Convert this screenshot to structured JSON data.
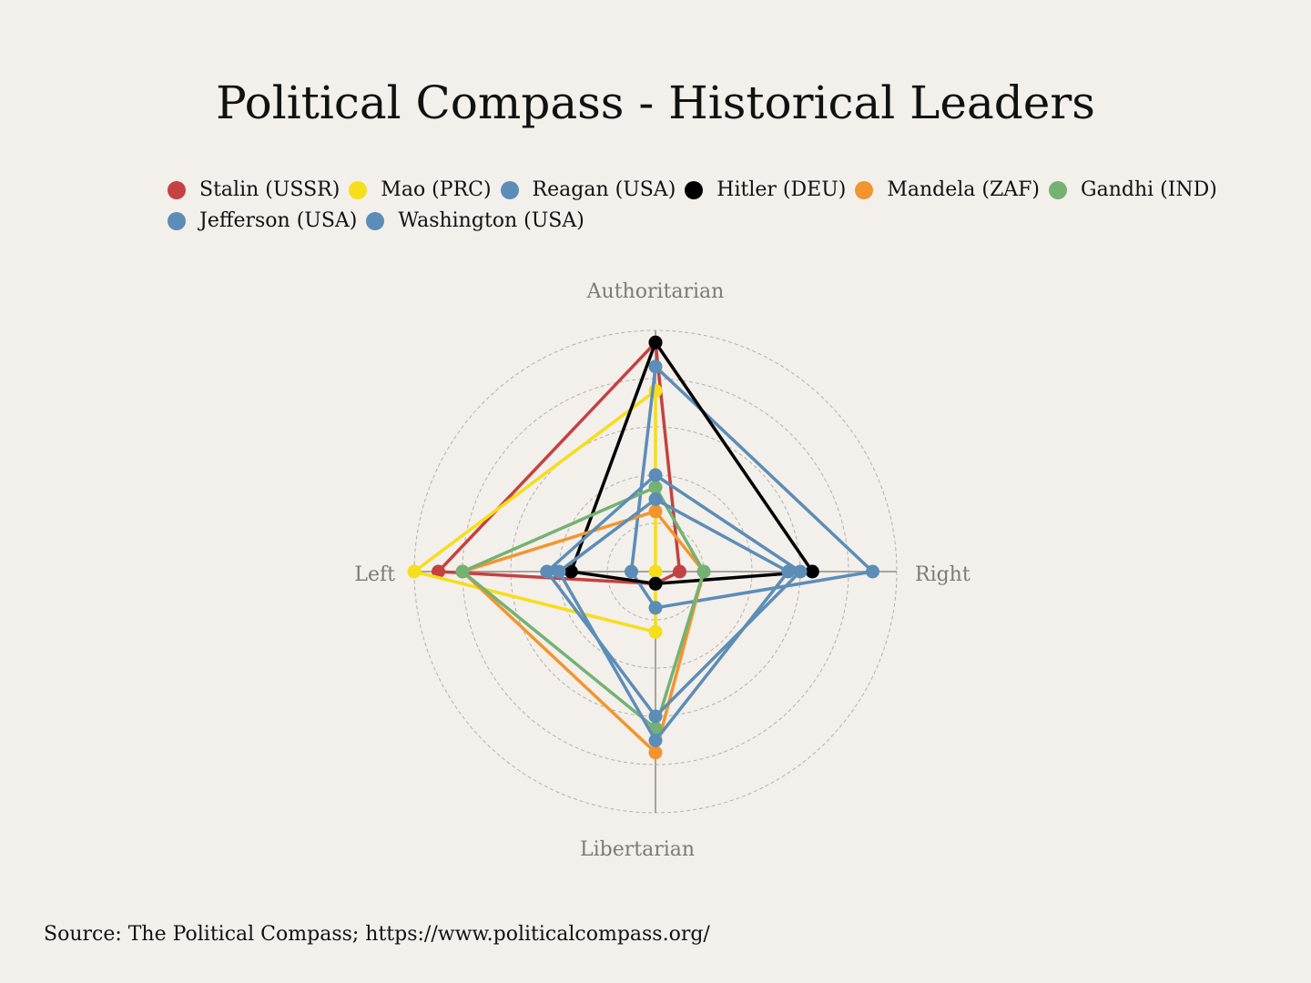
{
  "chart_data": {
    "type": "radar",
    "title": "Political Compass - Historical Leaders",
    "axes": [
      "Authoritarian",
      "Right",
      "Libertarian",
      "Left"
    ],
    "range": [
      0,
      10
    ],
    "grid": true,
    "legend_position": "top",
    "series": [
      {
        "name": "Stalin (USSR)",
        "color": "#c44241",
        "values": [
          9.5,
          1,
          0.5,
          9
        ]
      },
      {
        "name": "Mao (PRC)",
        "color": "#f5de1b",
        "values": [
          7.5,
          0,
          2.5,
          10
        ]
      },
      {
        "name": "Reagan (USA)",
        "color": "#5b8db8",
        "values": [
          8.5,
          9,
          1.5,
          1
        ]
      },
      {
        "name": "Hitler (DEU)",
        "color": "#000000",
        "values": [
          9.5,
          6.5,
          0.5,
          3.5
        ]
      },
      {
        "name": "Mandela (ZAF)",
        "color": "#f2952e",
        "values": [
          2.5,
          2,
          7.5,
          8
        ]
      },
      {
        "name": "Gandhi (IND)",
        "color": "#73b273",
        "values": [
          3.5,
          2,
          6.5,
          8
        ]
      },
      {
        "name": "Jefferson (USA)",
        "color": "#5b8db8",
        "values": [
          4,
          6,
          6,
          4.5
        ]
      },
      {
        "name": "Washington (USA)",
        "color": "#5b8db8",
        "values": [
          3,
          5.5,
          7,
          4
        ]
      }
    ]
  },
  "source": "Source: The Political Compass; https://www.politicalcompass.org/"
}
